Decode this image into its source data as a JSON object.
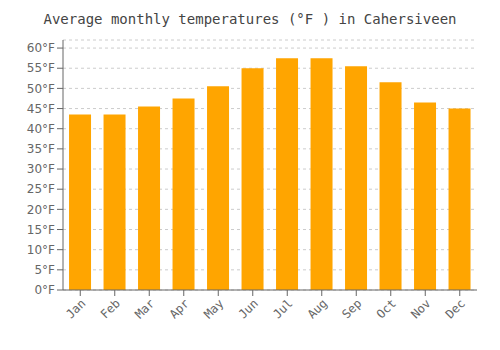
{
  "chart_data": {
    "type": "bar",
    "title": "Average monthly temperatures (°F ) in Cahersiveen",
    "categories": [
      "Jan",
      "Feb",
      "Mar",
      "Apr",
      "May",
      "Jun",
      "Jul",
      "Aug",
      "Sep",
      "Oct",
      "Nov",
      "Dec"
    ],
    "values": [
      43.5,
      43.5,
      45.5,
      47.5,
      50.5,
      55.0,
      57.5,
      57.5,
      55.5,
      51.5,
      46.5,
      45.0
    ],
    "color": "#FFA500",
    "ylim": [
      0,
      62
    ],
    "yticks": [
      {
        "value": 0,
        "label": "0°F"
      },
      {
        "value": 5,
        "label": "5°F"
      },
      {
        "value": 10,
        "label": "10°F"
      },
      {
        "value": 15,
        "label": "15°F"
      },
      {
        "value": 20,
        "label": "20°F"
      },
      {
        "value": 25,
        "label": "25°F"
      },
      {
        "value": 30,
        "label": "30°F"
      },
      {
        "value": 35,
        "label": "35°F"
      },
      {
        "value": 40,
        "label": "40°F"
      },
      {
        "value": 45,
        "label": "45°F"
      },
      {
        "value": 50,
        "label": "50°F"
      },
      {
        "value": 55,
        "label": "55°F"
      },
      {
        "value": 60,
        "label": "60°F"
      }
    ],
    "grid": true
  }
}
